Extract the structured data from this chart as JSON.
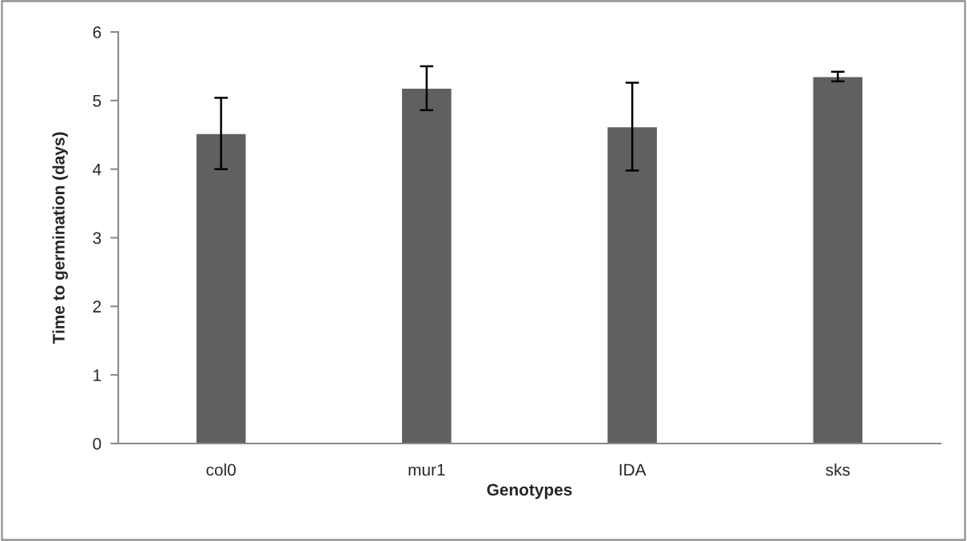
{
  "chart_data": {
    "type": "bar",
    "xlabel": "Genotypes",
    "ylabel": "Time to germination (days)",
    "categories": [
      "col0",
      "mur1",
      "IDA",
      "sks"
    ],
    "values": [
      4.52,
      5.18,
      4.62,
      5.35
    ],
    "errors": [
      0.52,
      0.32,
      0.64,
      0.07
    ],
    "color": "#606060",
    "ylim": [
      0,
      6
    ],
    "yticks": [
      0,
      1,
      2,
      3,
      4,
      5,
      6
    ],
    "grid": false,
    "legend": false
  }
}
